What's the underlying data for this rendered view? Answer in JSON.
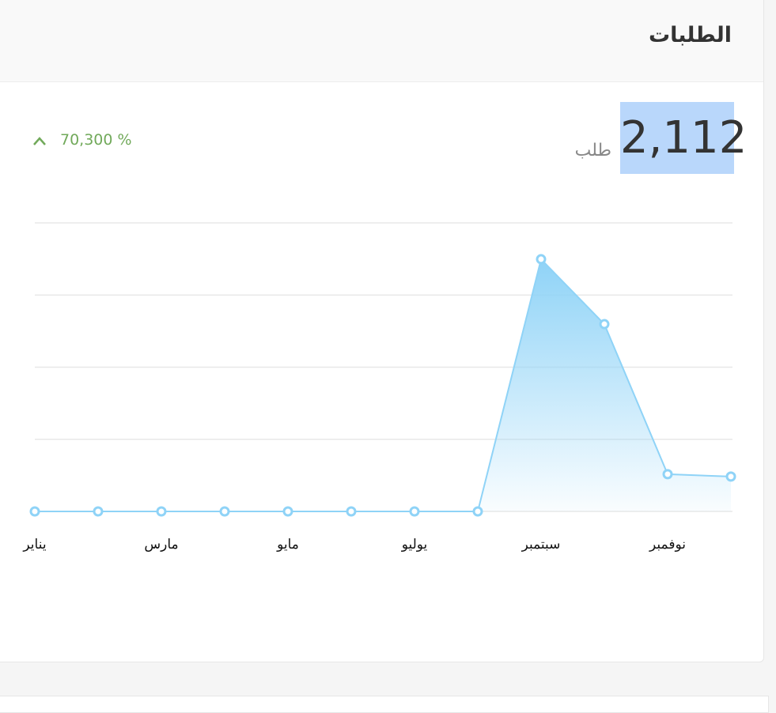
{
  "header": {
    "title": "الطلبات"
  },
  "summary": {
    "value": "2,112",
    "unit": "طلب",
    "change": "70,300 %"
  },
  "chart_data": {
    "type": "area",
    "categories": [
      "يناير",
      null,
      "مارس",
      null,
      "مايو",
      null,
      "يوليو",
      null,
      "سبتمبر",
      null,
      "نوفمبر",
      null
    ],
    "values": [
      0,
      0,
      0,
      0,
      0,
      0,
      0,
      0,
      1049,
      779,
      155,
      145
    ],
    "color": "#8fd3f7",
    "ylim": [
      0,
      1200
    ],
    "yticks": [
      0,
      300,
      600,
      900,
      1200
    ],
    "grid": true
  }
}
